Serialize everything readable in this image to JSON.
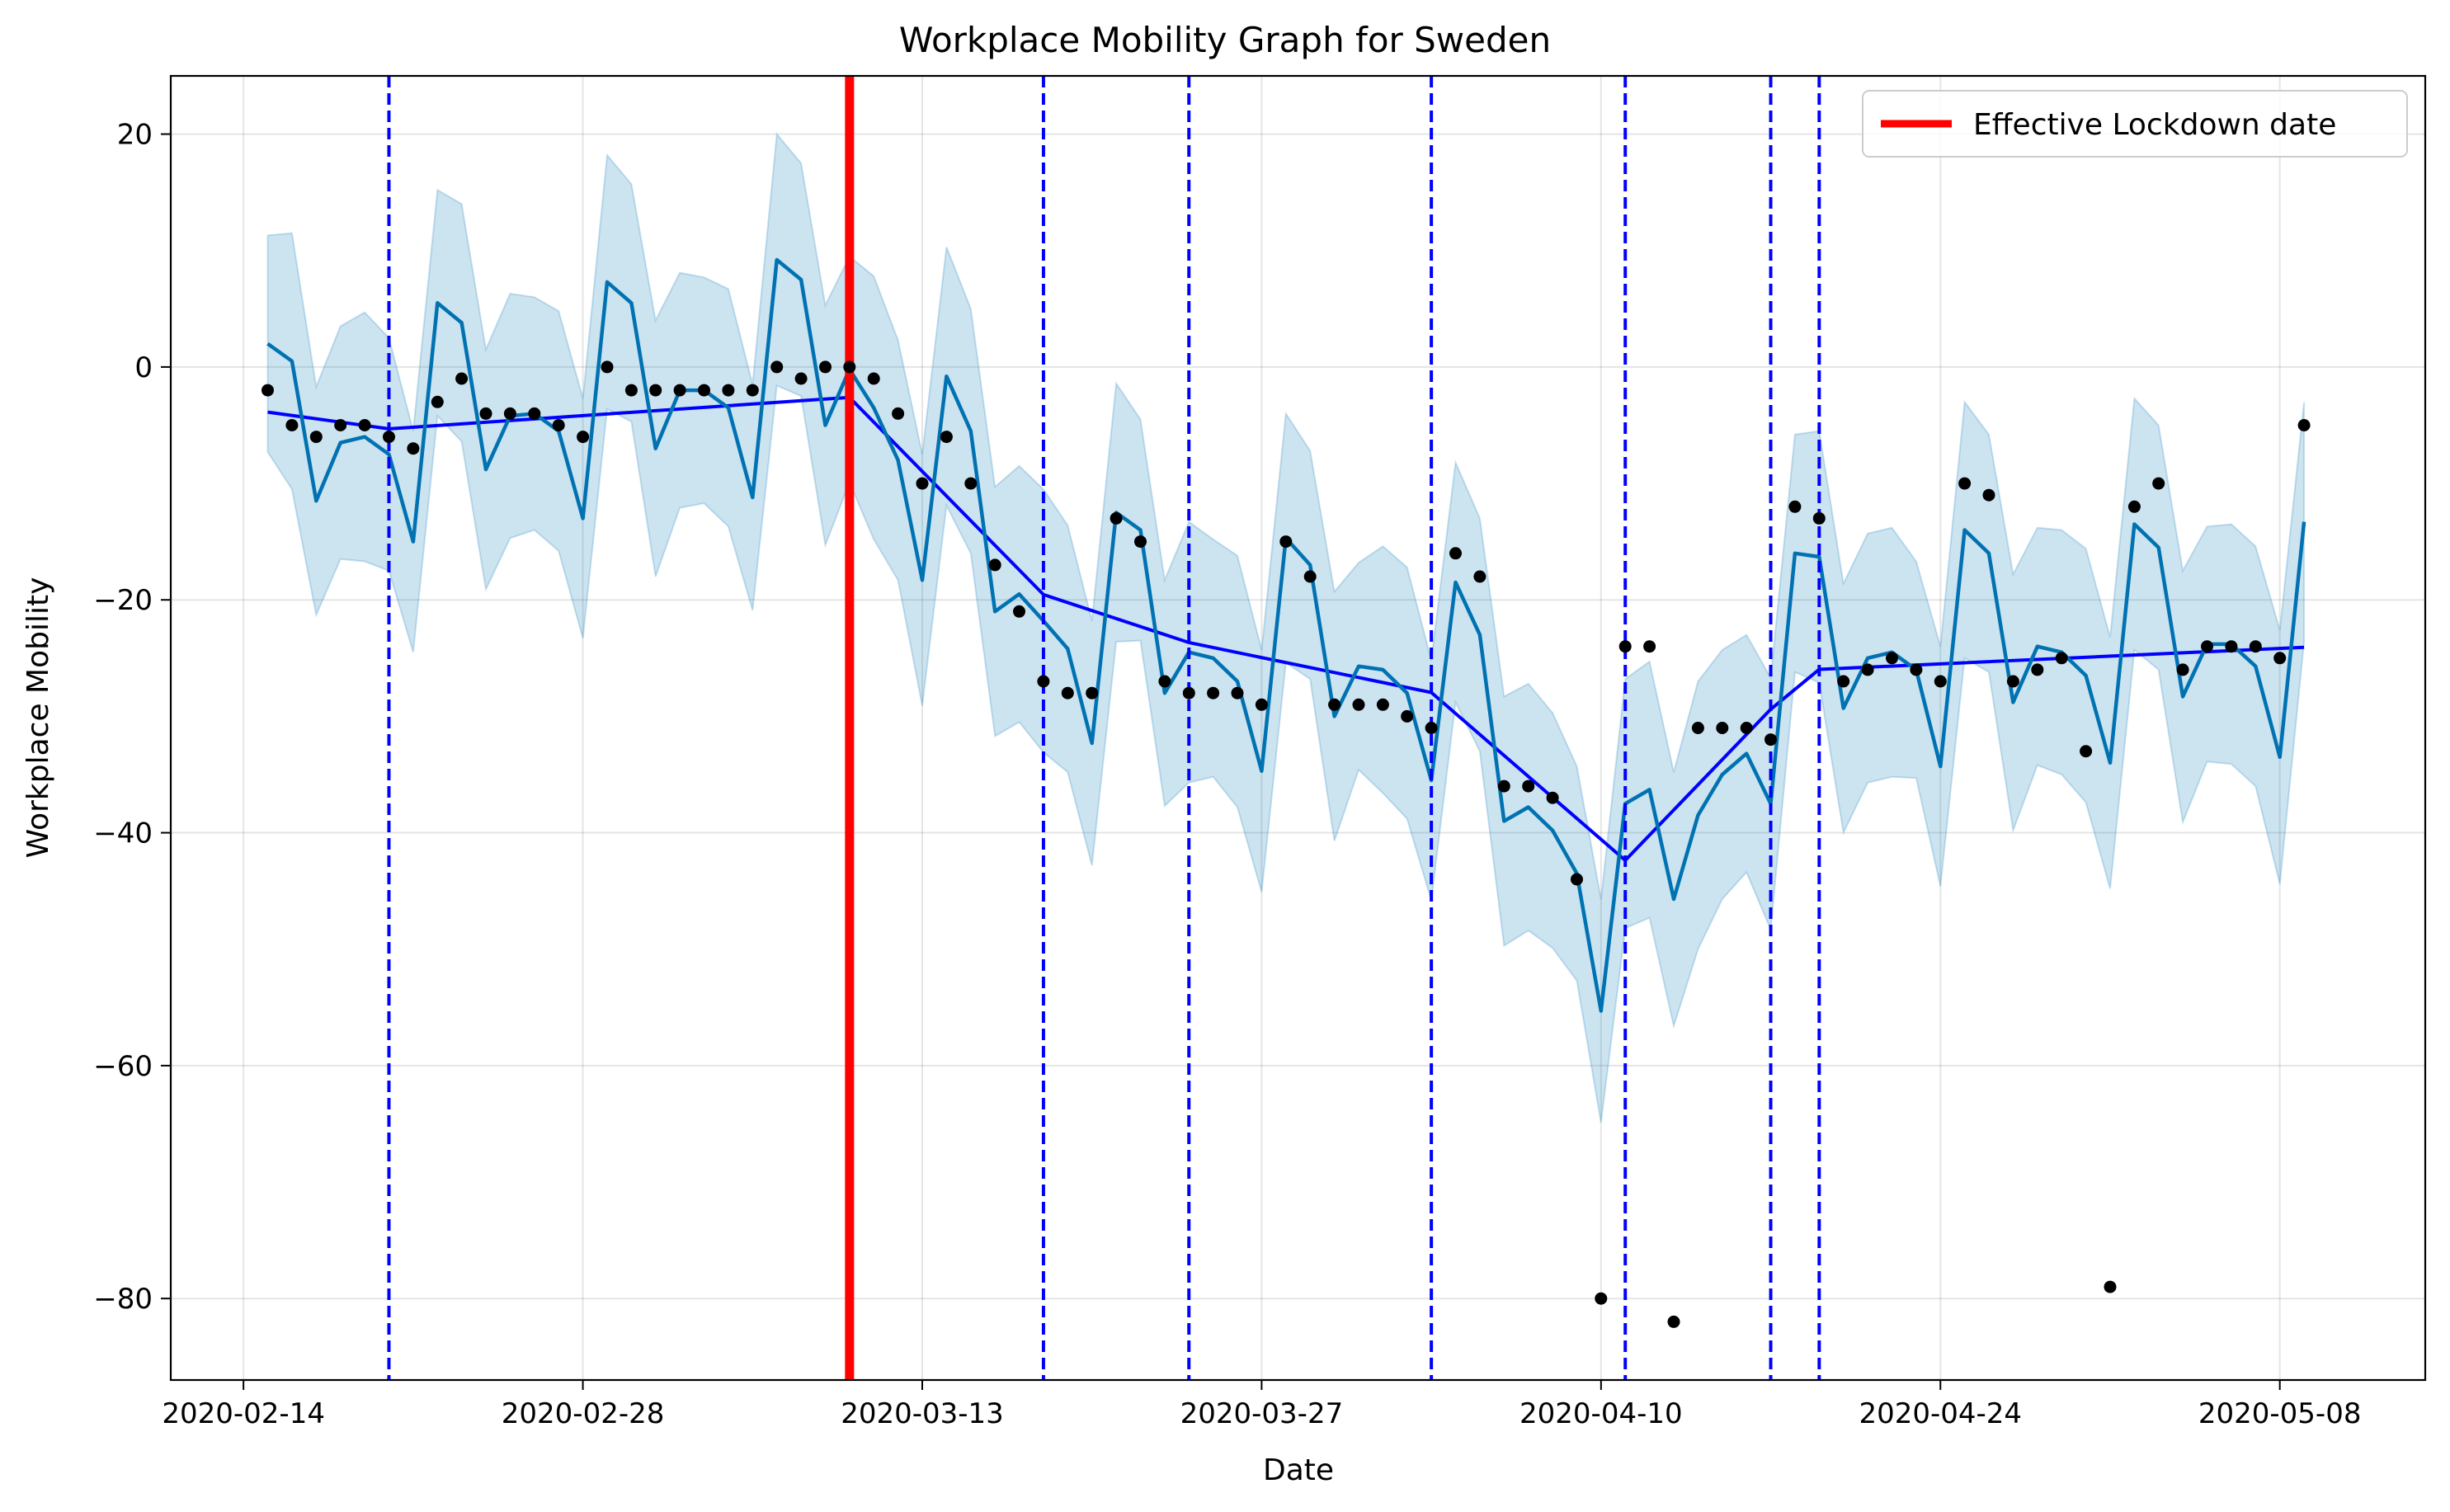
{
  "chart_data": {
    "type": "line",
    "title": "Workplace Mobility Graph for Sweden",
    "xlabel": "Date",
    "ylabel": "Workplace Mobility",
    "x_range": [
      "2020-02-11",
      "2020-05-14"
    ],
    "ylim": [
      -87,
      25
    ],
    "x_ticks": [
      "2020-02-14",
      "2020-02-28",
      "2020-03-13",
      "2020-03-27",
      "2020-04-10",
      "2020-04-24",
      "2020-05-08"
    ],
    "y_ticks": [
      20,
      0,
      -20,
      -40,
      -60,
      -80
    ],
    "grid": true,
    "legend": {
      "placement": "top-right",
      "entries": [
        "Effective Lockdown date"
      ]
    },
    "colors": {
      "forecast": "#0072b2",
      "band": "#0072b2",
      "trend": "#0000ff",
      "changepoint": "#0000ff",
      "lockdown": "#ff0000",
      "observed": "#000000"
    },
    "lockdown_date": "2020-03-10",
    "changepoints": [
      "2020-02-20",
      "2020-03-18",
      "2020-03-24",
      "2020-04-03",
      "2020-04-11",
      "2020-04-17",
      "2020-04-19"
    ],
    "observed": {
      "x": [
        "2020-02-15",
        "2020-02-16",
        "2020-02-17",
        "2020-02-18",
        "2020-02-19",
        "2020-02-20",
        "2020-02-21",
        "2020-02-22",
        "2020-02-23",
        "2020-02-24",
        "2020-02-25",
        "2020-02-26",
        "2020-02-27",
        "2020-02-28",
        "2020-02-29",
        "2020-03-01",
        "2020-03-02",
        "2020-03-03",
        "2020-03-04",
        "2020-03-05",
        "2020-03-06",
        "2020-03-07",
        "2020-03-08",
        "2020-03-09",
        "2020-03-10",
        "2020-03-11",
        "2020-03-12",
        "2020-03-13",
        "2020-03-14",
        "2020-03-15",
        "2020-03-16",
        "2020-03-17",
        "2020-03-18",
        "2020-03-19",
        "2020-03-20",
        "2020-03-21",
        "2020-03-22",
        "2020-03-23",
        "2020-03-24",
        "2020-03-25",
        "2020-03-26",
        "2020-03-27",
        "2020-03-28",
        "2020-03-29",
        "2020-03-30",
        "2020-03-31",
        "2020-04-01",
        "2020-04-02",
        "2020-04-03",
        "2020-04-04",
        "2020-04-05",
        "2020-04-06",
        "2020-04-07",
        "2020-04-08",
        "2020-04-09",
        "2020-04-10",
        "2020-04-11",
        "2020-04-12",
        "2020-04-13",
        "2020-04-14",
        "2020-04-15",
        "2020-04-16",
        "2020-04-17",
        "2020-04-18",
        "2020-04-19",
        "2020-04-20",
        "2020-04-21",
        "2020-04-22",
        "2020-04-23",
        "2020-04-24",
        "2020-04-25",
        "2020-04-26",
        "2020-04-27",
        "2020-04-28",
        "2020-04-29",
        "2020-04-30",
        "2020-05-01",
        "2020-05-02",
        "2020-05-03",
        "2020-05-04",
        "2020-05-05",
        "2020-05-06",
        "2020-05-07",
        "2020-05-08",
        "2020-05-09"
      ],
      "y": [
        -2,
        -5,
        -6,
        -5,
        -5,
        -6,
        -7,
        -3,
        -1,
        -4,
        -4,
        -4,
        -5,
        -6,
        0,
        -2,
        -2,
        -2,
        -2,
        -2,
        -2,
        0,
        -1,
        0,
        0,
        -1,
        -4,
        -10,
        -6,
        -10,
        -17,
        -21,
        -27,
        -28,
        -28,
        -13,
        -15,
        -27,
        -28,
        -28,
        -28,
        -29,
        -15,
        -18,
        -29,
        -29,
        -29,
        -30,
        -31,
        -16,
        -18,
        -36,
        -36,
        -37,
        -44,
        -80,
        -24,
        -24,
        -82,
        -31,
        -31,
        -31,
        -32,
        -12,
        -13,
        -27,
        -26,
        -25,
        -26,
        -27,
        -10,
        -11,
        -27,
        -26,
        -25,
        -33,
        -79,
        -12,
        -10,
        -26,
        -24,
        -24,
        -24,
        -25,
        -5
      ]
    },
    "forecast": {
      "x": [
        "2020-02-15",
        "2020-02-16",
        "2020-02-17",
        "2020-02-18",
        "2020-02-19",
        "2020-02-20",
        "2020-02-21",
        "2020-02-22",
        "2020-02-23",
        "2020-02-24",
        "2020-02-25",
        "2020-02-26",
        "2020-02-27",
        "2020-02-28",
        "2020-02-29",
        "2020-03-01",
        "2020-03-02",
        "2020-03-03",
        "2020-03-04",
        "2020-03-05",
        "2020-03-06",
        "2020-03-07",
        "2020-03-08",
        "2020-03-09",
        "2020-03-10",
        "2020-03-11",
        "2020-03-12",
        "2020-03-13",
        "2020-03-14",
        "2020-03-15",
        "2020-03-16",
        "2020-03-17",
        "2020-03-18",
        "2020-03-19",
        "2020-03-20",
        "2020-03-21",
        "2020-03-22",
        "2020-03-23",
        "2020-03-24",
        "2020-03-25",
        "2020-03-26",
        "2020-03-27",
        "2020-03-28",
        "2020-03-29",
        "2020-03-30",
        "2020-03-31",
        "2020-04-01",
        "2020-04-02",
        "2020-04-03",
        "2020-04-04",
        "2020-04-05",
        "2020-04-06",
        "2020-04-07",
        "2020-04-08",
        "2020-04-09",
        "2020-04-10",
        "2020-04-11",
        "2020-04-12",
        "2020-04-13",
        "2020-04-14",
        "2020-04-15",
        "2020-04-16",
        "2020-04-17",
        "2020-04-18",
        "2020-04-19",
        "2020-04-20",
        "2020-04-21",
        "2020-04-22",
        "2020-04-23",
        "2020-04-24",
        "2020-04-25",
        "2020-04-26",
        "2020-04-27",
        "2020-04-28",
        "2020-04-29",
        "2020-04-30",
        "2020-05-01",
        "2020-05-02",
        "2020-05-03",
        "2020-05-04",
        "2020-05-05",
        "2020-05-06",
        "2020-05-07",
        "2020-05-08",
        "2020-05-09"
      ],
      "y": [
        2,
        0.5,
        -11.5,
        -6.5,
        -6,
        -7.5,
        -15,
        5.5,
        3.8,
        -8.8,
        -4.2,
        -4,
        -5.5,
        -13,
        7.3,
        5.5,
        -7,
        -2,
        -2,
        -3.5,
        -11.2,
        9.2,
        7.5,
        -5,
        -0.2,
        -3.5,
        -8,
        -18.3,
        -0.8,
        -5.5,
        -21,
        -19.5,
        -21.8,
        -24.2,
        -32.3,
        -12.5,
        -14,
        -28,
        -24.5,
        -25,
        -27,
        -34.7,
        -14.7,
        -17,
        -30,
        -25.7,
        -26,
        -28,
        -35.5,
        -18.5,
        -23,
        -39,
        -37.8,
        -39.8,
        -43.5,
        -55.3,
        -37.5,
        -36.3,
        -45.7,
        -38.5,
        -35,
        -33.2,
        -37.5,
        -16,
        -16.3,
        -29.3,
        -25,
        -24.5,
        -26,
        -34.3,
        -14,
        -16,
        -28.8,
        -24,
        -24.5,
        -26.5,
        -34,
        -13.5,
        -15.5,
        -28.3,
        -23.8,
        -23.8,
        -25.7,
        -33.5,
        -13.3
      ]
    },
    "band_upper": [
      11.3,
      11.5,
      -1.7,
      3.5,
      4.7,
      2.5,
      -5.5,
      15.2,
      14,
      1.5,
      6.3,
      6,
      4.8,
      -2.7,
      18.2,
      15.7,
      4,
      8.1,
      7.7,
      6.7,
      -1.5,
      20,
      17.5,
      5.3,
      9.5,
      7.8,
      2.3,
      -7.5,
      10.3,
      5,
      -10.3,
      -8.5,
      -10.5,
      -13.6,
      -21.8,
      -1.4,
      -4.5,
      -18.3,
      -13.3,
      -14.8,
      -16.2,
      -24.3,
      -4,
      -7.2,
      -19.3,
      -16.8,
      -15.4,
      -17.2,
      -25.2,
      -8.2,
      -13,
      -28.3,
      -27.2,
      -29.7,
      -34.3,
      -45.7,
      -26.8,
      -25.3,
      -34.8,
      -27,
      -24.3,
      -23,
      -26.7,
      -5.8,
      -5.5,
      -18.6,
      -14.3,
      -13.8,
      -16.7,
      -24,
      -3,
      -5.8,
      -17.8,
      -13.8,
      -14,
      -15.6,
      -23.2,
      -2.7,
      -5,
      -17.5,
      -13.7,
      -13.5,
      -15.4,
      -22.6,
      -3
    ]
  }
}
